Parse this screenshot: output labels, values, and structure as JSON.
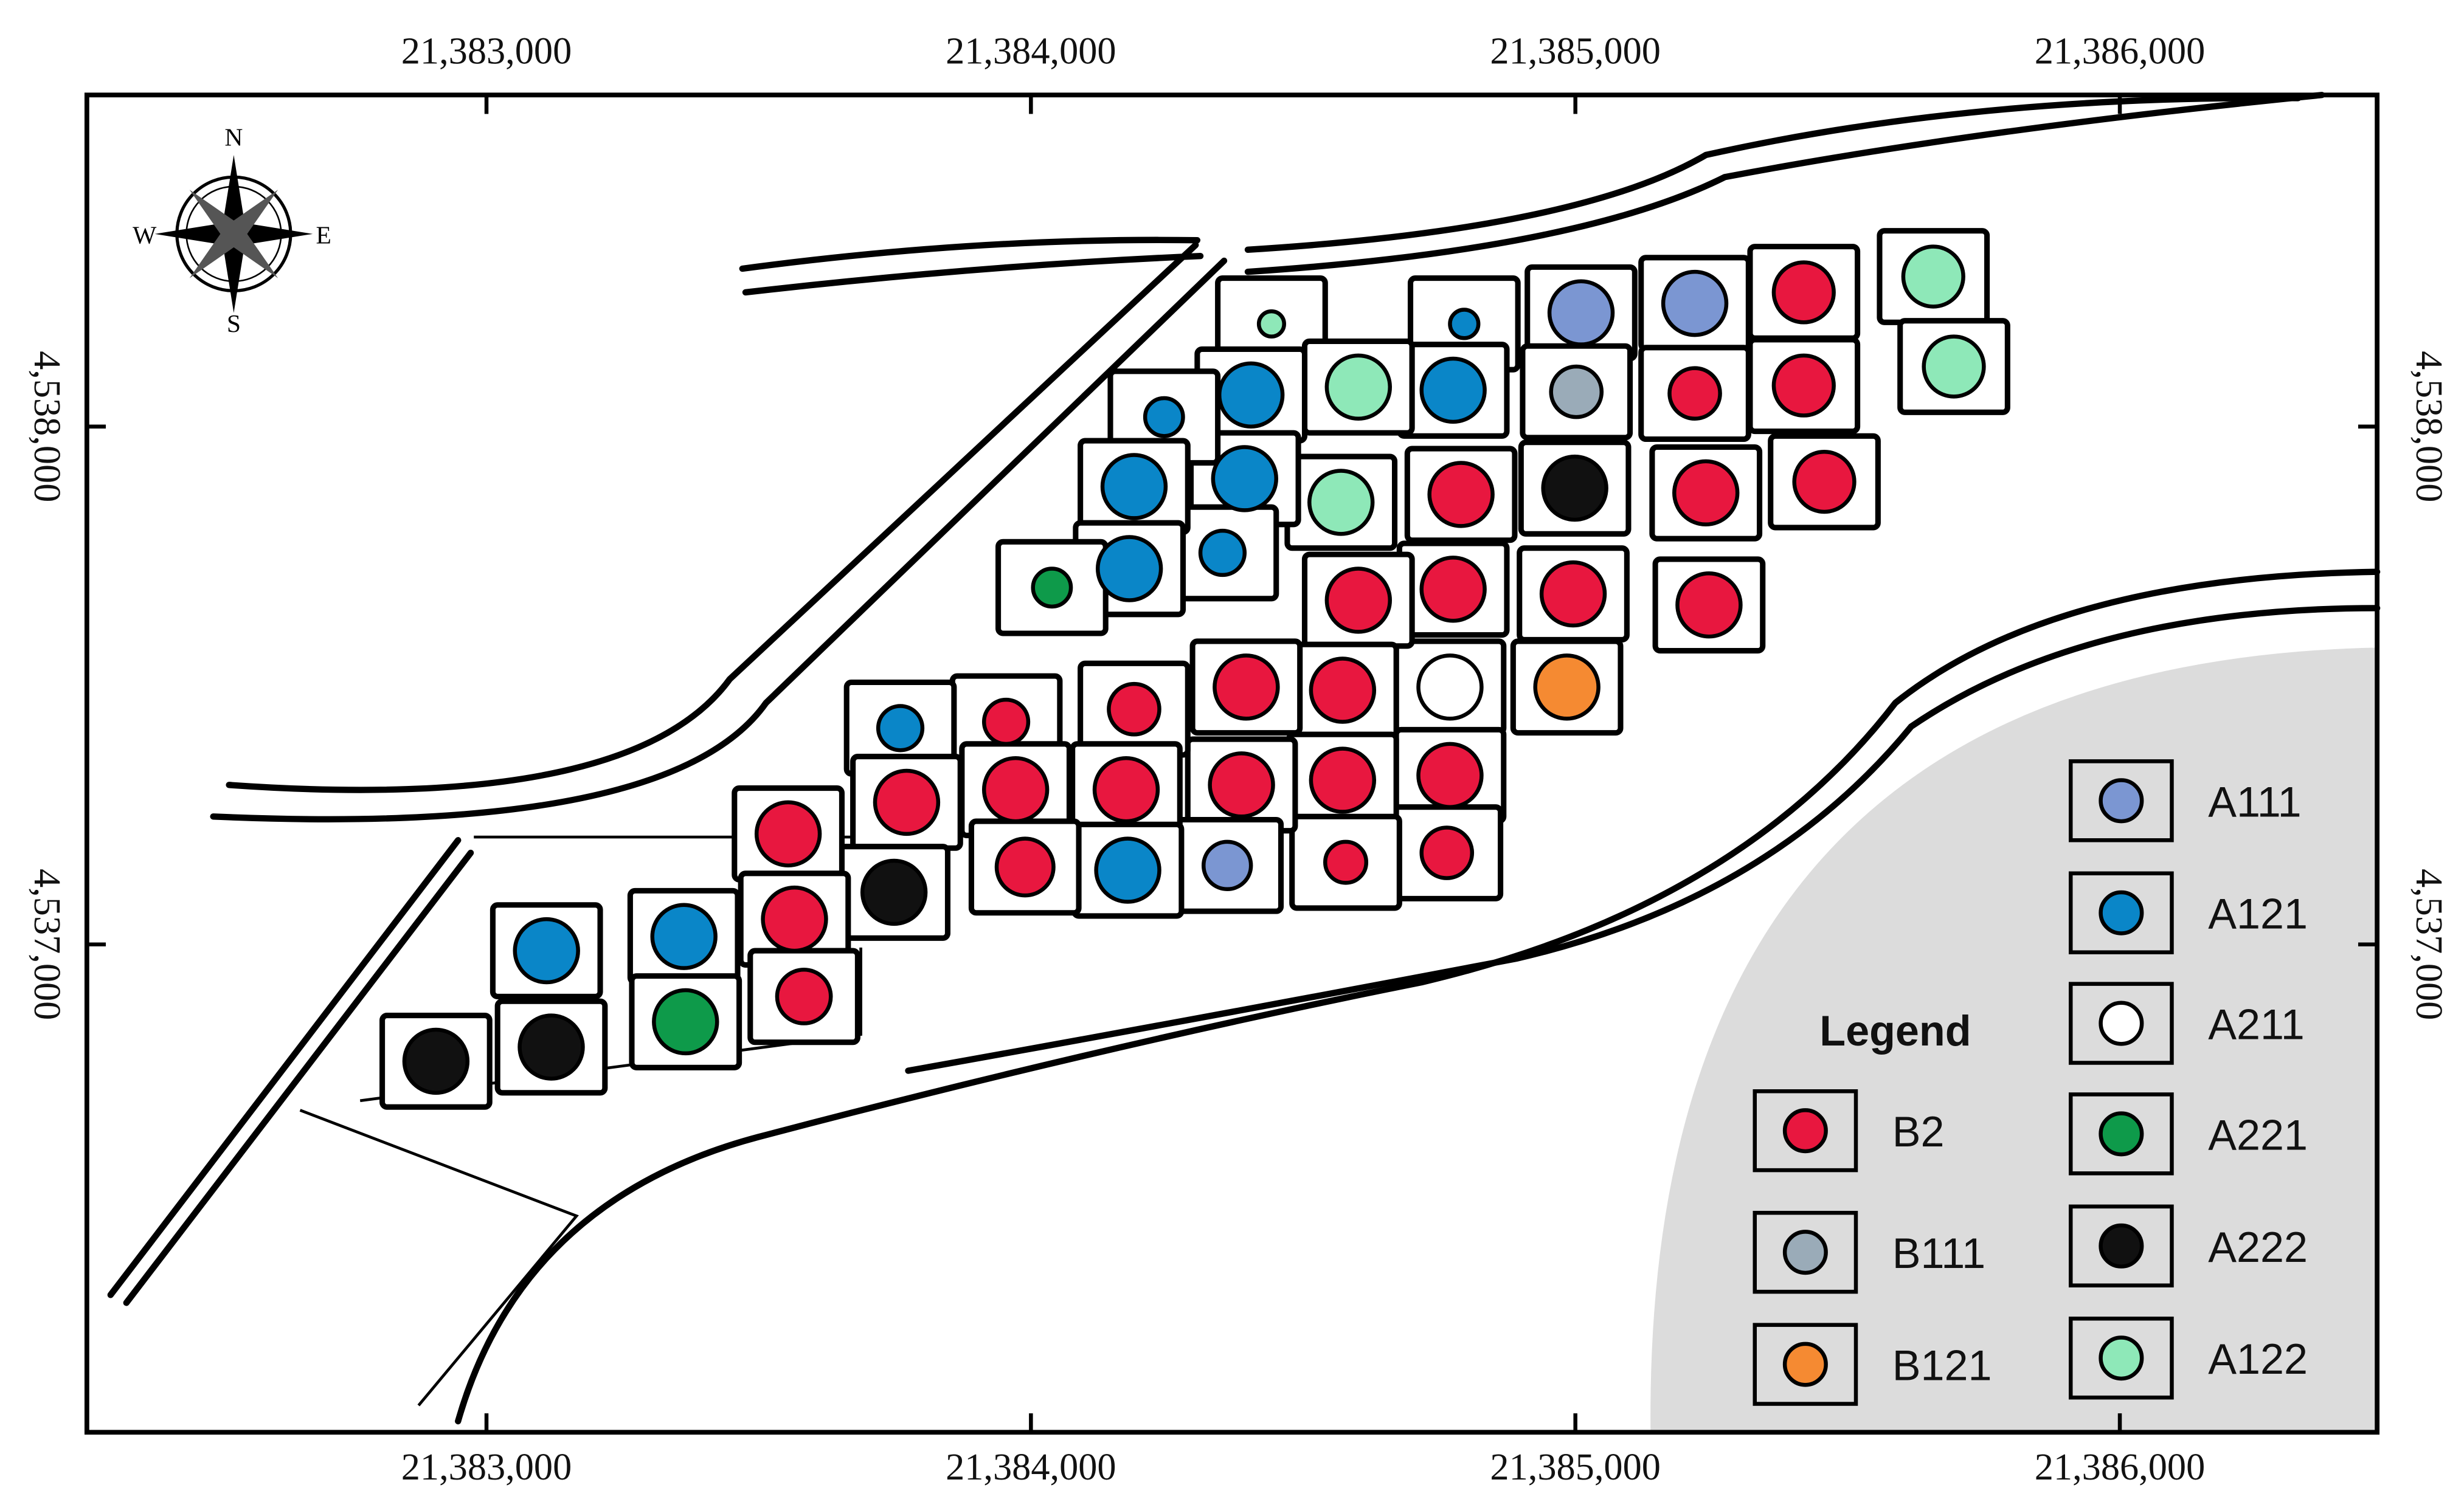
{
  "map": {
    "xticks": [
      {
        "value": 21383000,
        "label": "21,383,000"
      },
      {
        "value": 21384000,
        "label": "21,384,000"
      },
      {
        "value": 21385000,
        "label": "21,385,000"
      },
      {
        "value": 21386000,
        "label": "21,386,000"
      }
    ],
    "yticks": [
      {
        "value": 4538000,
        "label": "4,538,000"
      },
      {
        "value": 4537000,
        "label": "4,537,000"
      }
    ],
    "compass": {
      "n": "N",
      "s": "S",
      "e": "E",
      "w": "W"
    },
    "legend": {
      "title": "Legend",
      "items": [
        {
          "label": "B2",
          "color": "#e8173f"
        },
        {
          "label": "B111",
          "color": "#9aabb8"
        },
        {
          "label": "B121",
          "color": "#f58a32"
        },
        {
          "label": "A111",
          "color": "#7b96d2"
        },
        {
          "label": "A121",
          "color": "#0a86c8"
        },
        {
          "label": "A211",
          "color": "#ffffff"
        },
        {
          "label": "A221",
          "color": "#0e9a4a"
        },
        {
          "label": "A222",
          "color": "#111111"
        },
        {
          "label": "A122",
          "color": "#8ee8b8"
        }
      ]
    }
  }
}
